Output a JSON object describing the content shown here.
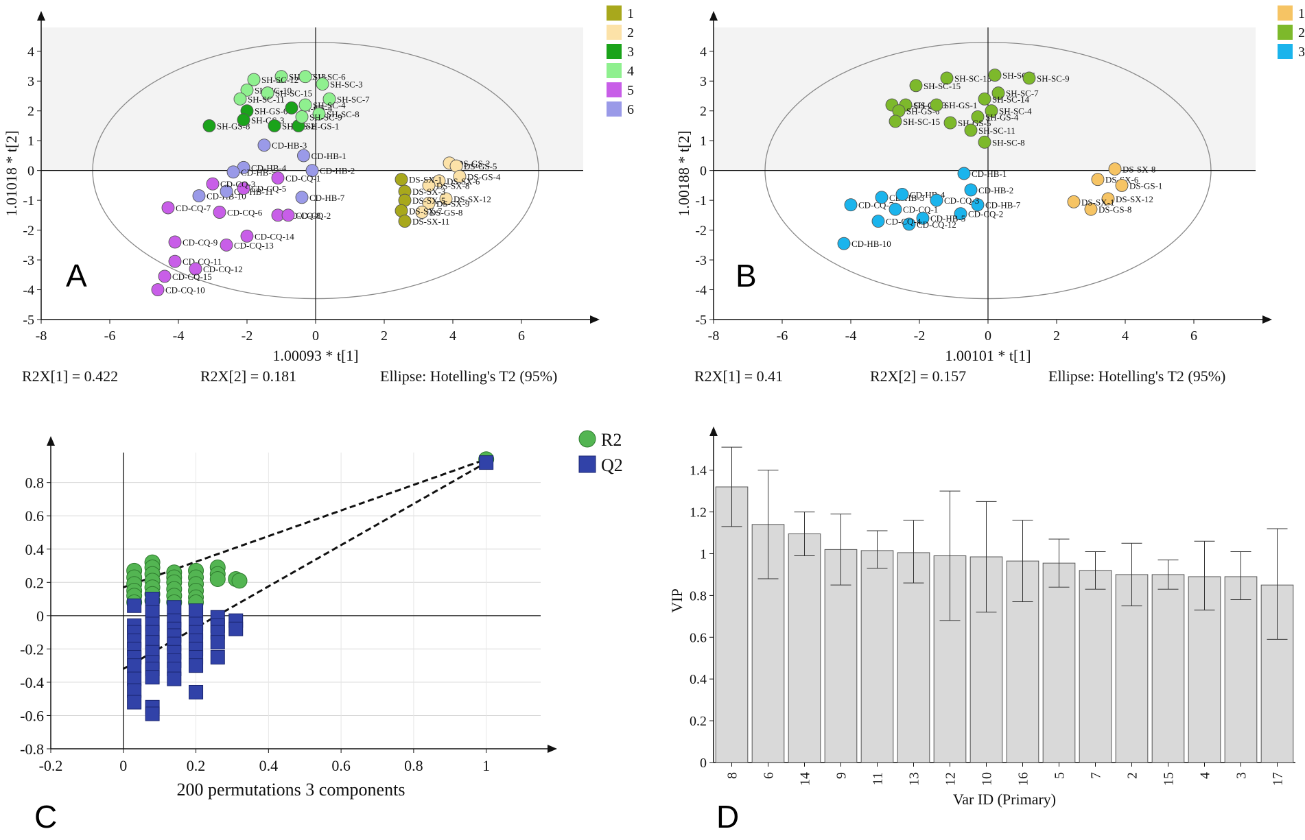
{
  "chart_data": [
    {
      "panel": "A",
      "type": "scatter",
      "title": "",
      "xlabel": "1.00093 * t[1]",
      "ylabel": "1.01018 * t[2]",
      "xlim": [
        -8,
        7.8
      ],
      "ylim": [
        -5,
        4.8
      ],
      "xticks": [
        "-8",
        "-6",
        "-4",
        "-2",
        "0",
        "2",
        "4",
        "6"
      ],
      "yticks": [
        "-5",
        "-4",
        "-3",
        "-2",
        "-1",
        "0",
        "1",
        "2",
        "3",
        "4"
      ],
      "stats": [
        "R2X[1] = 0.422",
        "R2X[2] = 0.181",
        "Ellipse: Hotelling's T2 (95%)"
      ],
      "ellipse": {
        "cx": 0,
        "cy": 0,
        "rx": 6.5,
        "ry": 4.3
      },
      "legend": [
        {
          "name": "1",
          "color": "#a8a81c"
        },
        {
          "name": "2",
          "color": "#fce2a8"
        },
        {
          "name": "3",
          "color": "#1aa31a"
        },
        {
          "name": "4",
          "color": "#8ff08f"
        },
        {
          "name": "5",
          "color": "#c85ee8"
        },
        {
          "name": "6",
          "color": "#9a9ae8"
        }
      ],
      "points": [
        {
          "x": -3.1,
          "y": 1.5,
          "g": 2,
          "label": "SH-GS-8"
        },
        {
          "x": -2.0,
          "y": 2.0,
          "g": 2,
          "label": "SH-GS-6"
        },
        {
          "x": -2.1,
          "y": 1.7,
          "g": 2,
          "label": "SH-GS-3"
        },
        {
          "x": -0.7,
          "y": 2.1,
          "g": 2,
          "label": "SH-GS-4"
        },
        {
          "x": -1.2,
          "y": 1.5,
          "g": 2,
          "label": "SH-GS-2"
        },
        {
          "x": -0.5,
          "y": 1.5,
          "g": 2,
          "label": "SH-GS-1"
        },
        {
          "x": -1.0,
          "y": 3.15,
          "g": 3,
          "label": "SH-SC-13"
        },
        {
          "x": -0.3,
          "y": 3.15,
          "g": 3,
          "label": "SH-SC-6"
        },
        {
          "x": -1.8,
          "y": 3.05,
          "g": 3,
          "label": "SH-SC-12"
        },
        {
          "x": 0.2,
          "y": 2.9,
          "g": 3,
          "label": "SH-SC-3"
        },
        {
          "x": -2.0,
          "y": 2.7,
          "g": 3,
          "label": "SH-SC-10"
        },
        {
          "x": -1.4,
          "y": 2.6,
          "g": 3,
          "label": "SH-SC-15"
        },
        {
          "x": 0.4,
          "y": 2.4,
          "g": 3,
          "label": "SH-SC-7"
        },
        {
          "x": -2.2,
          "y": 2.4,
          "g": 3,
          "label": "SH-SC-11"
        },
        {
          "x": -0.3,
          "y": 2.2,
          "g": 3,
          "label": "SH-SC-4"
        },
        {
          "x": 0.1,
          "y": 1.9,
          "g": 3,
          "label": "SH-SC-8"
        },
        {
          "x": -0.4,
          "y": 1.8,
          "g": 3,
          "label": "SH-SC-9"
        },
        {
          "x": -1.5,
          "y": 0.85,
          "g": 5,
          "label": "CD-HB-3"
        },
        {
          "x": -0.35,
          "y": 0.5,
          "g": 5,
          "label": "CD-HB-1"
        },
        {
          "x": -2.1,
          "y": 0.1,
          "g": 5,
          "label": "CD-HB-4"
        },
        {
          "x": -0.1,
          "y": 0.0,
          "g": 5,
          "label": "CD-HB-2"
        },
        {
          "x": -2.4,
          "y": -0.05,
          "g": 5,
          "label": "CD-HB-5"
        },
        {
          "x": -0.4,
          "y": -0.9,
          "g": 5,
          "label": "CD-HB-7"
        },
        {
          "x": -3.4,
          "y": -0.85,
          "g": 5,
          "label": "CD-HB-10"
        },
        {
          "x": -2.6,
          "y": -0.7,
          "g": 5,
          "label": "CD-HB-11"
        },
        {
          "x": -1.1,
          "y": -0.25,
          "g": 4,
          "label": "CD-CQ-1"
        },
        {
          "x": -2.1,
          "y": -0.6,
          "g": 4,
          "label": "CD-CQ-5"
        },
        {
          "x": -3.0,
          "y": -0.45,
          "g": 4,
          "label": "CD-CQ-3"
        },
        {
          "x": -4.3,
          "y": -1.25,
          "g": 4,
          "label": "CD-CQ-7"
        },
        {
          "x": -2.8,
          "y": -1.4,
          "g": 4,
          "label": "CD-CQ-6"
        },
        {
          "x": -1.1,
          "y": -1.5,
          "g": 4,
          "label": "CD-CQ-8"
        },
        {
          "x": -0.8,
          "y": -1.5,
          "g": 4,
          "label": "CD-CQ-2"
        },
        {
          "x": -2.0,
          "y": -2.2,
          "g": 4,
          "label": "CD-CQ-14"
        },
        {
          "x": -4.1,
          "y": -2.4,
          "g": 4,
          "label": "CD-CQ-9"
        },
        {
          "x": -2.6,
          "y": -2.5,
          "g": 4,
          "label": "CD-CQ-13"
        },
        {
          "x": -4.1,
          "y": -3.05,
          "g": 4,
          "label": "CD-CQ-11"
        },
        {
          "x": -3.5,
          "y": -3.3,
          "g": 4,
          "label": "CD-CQ-12"
        },
        {
          "x": -4.4,
          "y": -3.55,
          "g": 4,
          "label": "CD-CQ-15"
        },
        {
          "x": -4.6,
          "y": -4.0,
          "g": 4,
          "label": "CD-CQ-10"
        },
        {
          "x": 3.9,
          "y": 0.25,
          "g": 1,
          "label": "DS-GS-2"
        },
        {
          "x": 4.1,
          "y": 0.15,
          "g": 1,
          "label": "DS-GS-5"
        },
        {
          "x": 4.2,
          "y": -0.2,
          "g": 1,
          "label": "DS-GS-4"
        },
        {
          "x": 3.6,
          "y": -0.35,
          "g": 1,
          "label": "DS-SX-6"
        },
        {
          "x": 3.3,
          "y": -0.5,
          "g": 1,
          "label": "DS-SX-8"
        },
        {
          "x": 3.8,
          "y": -0.95,
          "g": 1,
          "label": "DS-SX-12"
        },
        {
          "x": 3.3,
          "y": -1.1,
          "g": 1,
          "label": "DS-SX-9"
        },
        {
          "x": 3.1,
          "y": -1.4,
          "g": 1,
          "label": "DS-GS-8"
        },
        {
          "x": 2.5,
          "y": -0.3,
          "g": 0,
          "label": "DS-SX-1"
        },
        {
          "x": 2.6,
          "y": -0.7,
          "g": 0,
          "label": "DS-SX-3"
        },
        {
          "x": 2.6,
          "y": -1.0,
          "g": 0,
          "label": "DS-SX-5"
        },
        {
          "x": 2.5,
          "y": -1.35,
          "g": 0,
          "label": "DS-SX-7"
        },
        {
          "x": 2.6,
          "y": -1.7,
          "g": 0,
          "label": "DS-SX-11"
        }
      ]
    },
    {
      "panel": "B",
      "type": "scatter",
      "title": "",
      "xlabel": "1.00101 * t[1]",
      "ylabel": "1.00188 * t[2]",
      "xlim": [
        -8,
        7.8
      ],
      "ylim": [
        -5,
        4.8
      ],
      "xticks": [
        "-8",
        "-6",
        "-4",
        "-2",
        "0",
        "2",
        "4",
        "6"
      ],
      "yticks": [
        "-5",
        "-4",
        "-3",
        "-2",
        "-1",
        "0",
        "1",
        "2",
        "3",
        "4"
      ],
      "stats": [
        "R2X[1] = 0.41",
        "R2X[2] = 0.157",
        "Ellipse: Hotelling's T2 (95%)"
      ],
      "ellipse": {
        "cx": 0,
        "cy": 0,
        "rx": 6.5,
        "ry": 4.3
      },
      "legend": [
        {
          "name": "1",
          "color": "#f6c464"
        },
        {
          "name": "2",
          "color": "#7db92b"
        },
        {
          "name": "3",
          "color": "#1bb4ec"
        }
      ],
      "points": [
        {
          "x": -1.2,
          "y": 3.1,
          "g": 1,
          "label": "SH-SC-13"
        },
        {
          "x": 0.2,
          "y": 3.2,
          "g": 1,
          "label": "SH-SC-6"
        },
        {
          "x": 1.2,
          "y": 3.1,
          "g": 1,
          "label": "SH-SC-9"
        },
        {
          "x": -2.1,
          "y": 2.85,
          "g": 1,
          "label": "SH-SC-15"
        },
        {
          "x": 0.3,
          "y": 2.6,
          "g": 1,
          "label": "SH-SC-7"
        },
        {
          "x": -0.1,
          "y": 2.4,
          "g": 1,
          "label": "SH-SC-14"
        },
        {
          "x": -2.8,
          "y": 2.2,
          "g": 1,
          "label": "SH-GS-2"
        },
        {
          "x": -2.4,
          "y": 2.2,
          "g": 1,
          "label": "SH-GS-3"
        },
        {
          "x": -2.6,
          "y": 2.0,
          "g": 1,
          "label": "SH-GS-6"
        },
        {
          "x": -1.5,
          "y": 2.2,
          "g": 1,
          "label": "SH-GS-1"
        },
        {
          "x": 0.1,
          "y": 2.0,
          "g": 1,
          "label": "SH-SC-4"
        },
        {
          "x": -0.3,
          "y": 1.8,
          "g": 1,
          "label": "SH-GS-4"
        },
        {
          "x": -2.7,
          "y": 1.65,
          "g": 1,
          "label": "SH-SC-15"
        },
        {
          "x": -1.1,
          "y": 1.6,
          "g": 1,
          "label": "SH-GS-5"
        },
        {
          "x": -0.5,
          "y": 1.35,
          "g": 1,
          "label": "SH-SC-11"
        },
        {
          "x": -0.1,
          "y": 0.95,
          "g": 1,
          "label": "SH-SC-8"
        },
        {
          "x": -0.7,
          "y": -0.1,
          "g": 2,
          "label": "CD-HB-1"
        },
        {
          "x": -0.5,
          "y": -0.65,
          "g": 2,
          "label": "CD-HB-2"
        },
        {
          "x": -4.0,
          "y": -1.15,
          "g": 2,
          "label": "CD-CQ-7"
        },
        {
          "x": -0.3,
          "y": -1.15,
          "g": 2,
          "label": "CD-HB-7"
        },
        {
          "x": -0.8,
          "y": -1.45,
          "g": 2,
          "label": "CD-CQ-2"
        },
        {
          "x": -2.7,
          "y": -1.3,
          "g": 2,
          "label": "CD-CQ-1"
        },
        {
          "x": -1.9,
          "y": -1.6,
          "g": 2,
          "label": "CD-HB-5"
        },
        {
          "x": -2.3,
          "y": -1.8,
          "g": 2,
          "label": "CD-CQ-12"
        },
        {
          "x": -3.1,
          "y": -0.9,
          "g": 2,
          "label": "CD-HB-3"
        },
        {
          "x": -2.5,
          "y": -0.8,
          "g": 2,
          "label": "CD-HB-4"
        },
        {
          "x": -1.5,
          "y": -1.0,
          "g": 2,
          "label": "CD-CQ-3"
        },
        {
          "x": -3.2,
          "y": -1.7,
          "g": 2,
          "label": "CD-CQ-4"
        },
        {
          "x": -4.2,
          "y": -2.45,
          "g": 2,
          "label": "CD-HB-10"
        },
        {
          "x": 3.7,
          "y": 0.05,
          "g": 0,
          "label": "DS-SX-8"
        },
        {
          "x": 3.2,
          "y": -0.3,
          "g": 0,
          "label": "DS-SX-6"
        },
        {
          "x": 3.9,
          "y": -0.5,
          "g": 0,
          "label": "DS-GS-1"
        },
        {
          "x": 3.5,
          "y": -0.95,
          "g": 0,
          "label": "DS-SX-12"
        },
        {
          "x": 3.0,
          "y": -1.3,
          "g": 0,
          "label": "DS-GS-8"
        },
        {
          "x": 2.5,
          "y": -1.05,
          "g": 0,
          "label": "DS-SX-1"
        }
      ]
    },
    {
      "panel": "C",
      "type": "scatter",
      "title": "",
      "xlabel": "200 permutations 3 components",
      "ylabel": "",
      "xlim": [
        -0.2,
        1.15
      ],
      "ylim": [
        -0.8,
        0.98
      ],
      "xticks": [
        "-0.2",
        "0",
        "0.2",
        "0.4",
        "0.6",
        "0.8",
        "1"
      ],
      "yticks": [
        "-0.8",
        "-0.6",
        "-0.4",
        "-0.2",
        "0",
        "0.2",
        "0.4",
        "0.6",
        "0.8"
      ],
      "series": [
        {
          "name": "R2",
          "color": "#53b552",
          "marker": "circle",
          "x": [
            0.03,
            0.03,
            0.03,
            0.03,
            0.03,
            0.03,
            0.08,
            0.08,
            0.08,
            0.08,
            0.08,
            0.08,
            0.08,
            0.14,
            0.14,
            0.14,
            0.14,
            0.14,
            0.14,
            0.2,
            0.2,
            0.2,
            0.2,
            0.2,
            0.2,
            0.26,
            0.26,
            0.26,
            0.31,
            0.32,
            1.0
          ],
          "y": [
            0.27,
            0.23,
            0.19,
            0.15,
            0.12,
            0.08,
            0.32,
            0.29,
            0.25,
            0.21,
            0.17,
            0.13,
            0.09,
            0.26,
            0.23,
            0.2,
            0.16,
            0.12,
            0.08,
            0.27,
            0.23,
            0.19,
            0.15,
            0.11,
            0.08,
            0.29,
            0.25,
            0.22,
            0.22,
            0.21,
            0.94
          ]
        },
        {
          "name": "Q2",
          "color": "#3142a8",
          "marker": "square",
          "x": [
            0.03,
            0.03,
            0.03,
            0.03,
            0.03,
            0.03,
            0.03,
            0.03,
            0.03,
            0.03,
            0.08,
            0.08,
            0.08,
            0.08,
            0.08,
            0.08,
            0.08,
            0.08,
            0.08,
            0.08,
            0.08,
            0.14,
            0.14,
            0.14,
            0.14,
            0.14,
            0.14,
            0.14,
            0.14,
            0.14,
            0.2,
            0.2,
            0.2,
            0.2,
            0.2,
            0.2,
            0.2,
            0.2,
            0.26,
            0.26,
            0.26,
            0.26,
            0.26,
            0.31,
            0.31,
            1.0
          ],
          "y": [
            0.06,
            -0.06,
            -0.1,
            -0.15,
            -0.2,
            -0.25,
            -0.3,
            -0.38,
            -0.45,
            -0.52,
            0.1,
            0.02,
            -0.05,
            -0.1,
            -0.16,
            -0.22,
            -0.28,
            -0.32,
            -0.37,
            -0.55,
            -0.59,
            0.05,
            -0.03,
            -0.08,
            -0.12,
            -0.17,
            -0.22,
            -0.27,
            -0.32,
            -0.38,
            0.03,
            -0.05,
            -0.1,
            -0.15,
            -0.2,
            -0.25,
            -0.3,
            -0.46,
            -0.01,
            -0.06,
            -0.1,
            -0.16,
            -0.25,
            -0.03,
            -0.08,
            0.92
          ]
        }
      ],
      "trend_lines": [
        {
          "name": "R2",
          "from": [
            0.0,
            0.17
          ],
          "to": [
            1.0,
            0.94
          ]
        },
        {
          "name": "Q2",
          "from": [
            0.0,
            -0.32
          ],
          "to": [
            1.0,
            0.92
          ]
        }
      ]
    },
    {
      "panel": "D",
      "type": "bar",
      "title": "",
      "xlabel": "Var ID (Primary)",
      "ylabel": "VIP",
      "ylim": [
        0,
        1.55
      ],
      "yticks": [
        "0",
        "0.2",
        "0.4",
        "0.6",
        "0.8",
        "1",
        "1.2",
        "1.4"
      ],
      "categories": [
        "8",
        "6",
        "14",
        "9",
        "11",
        "13",
        "12",
        "10",
        "16",
        "5",
        "7",
        "2",
        "15",
        "4",
        "3",
        "17"
      ],
      "values": [
        1.32,
        1.14,
        1.095,
        1.02,
        1.015,
        1.005,
        0.99,
        0.985,
        0.965,
        0.955,
        0.92,
        0.9,
        0.9,
        0.89,
        0.89,
        0.85
      ],
      "error_low": [
        1.13,
        0.88,
        0.99,
        0.85,
        0.93,
        0.86,
        0.68,
        0.72,
        0.77,
        0.84,
        0.83,
        0.75,
        0.83,
        0.73,
        0.78,
        0.59
      ],
      "error_high": [
        1.51,
        1.4,
        1.2,
        1.19,
        1.11,
        1.16,
        1.3,
        1.25,
        1.16,
        1.07,
        1.01,
        1.05,
        0.97,
        1.06,
        1.01,
        1.12
      ]
    }
  ],
  "panel_labels": {
    "a": "A",
    "b": "B",
    "c": "C",
    "d": "D"
  }
}
